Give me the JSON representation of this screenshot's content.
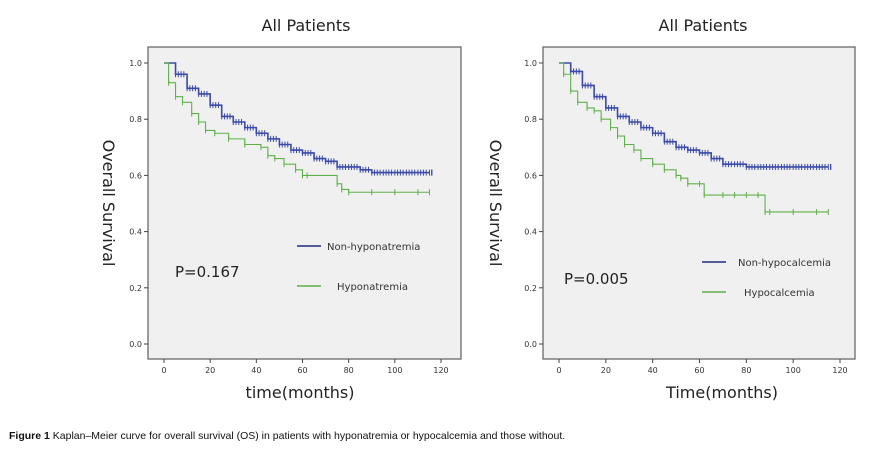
{
  "caption": {
    "label": "Figure 1",
    "text": "Kaplan–Meier curve for overall survival (OS) in patients with hyponatremia or hypocalcemia and those without."
  },
  "chart_data": [
    {
      "type": "line",
      "subtype": "kaplan-meier",
      "title": "All Patients",
      "xlabel": "time(months)",
      "ylabel": "Overall Survival",
      "xlim": [
        0,
        120
      ],
      "ylim": [
        0,
        1.0
      ],
      "xticks": [
        "0",
        "20",
        "40",
        "60",
        "80",
        "100",
        "120"
      ],
      "yticks": [
        "0.0",
        "0.2",
        "0.4",
        "0.6",
        "0.8",
        "1.0"
      ],
      "grid": false,
      "legend_position": "center-right",
      "annotation": "P=0.167",
      "series": [
        {
          "name": "Non-hyponatremia",
          "color": "#3a4aa8",
          "x": [
            0,
            5,
            10,
            15,
            20,
            25,
            30,
            35,
            40,
            45,
            50,
            55,
            60,
            65,
            70,
            75,
            80,
            85,
            90,
            95,
            100,
            105,
            110,
            115
          ],
          "y": [
            1.0,
            0.96,
            0.91,
            0.89,
            0.85,
            0.81,
            0.79,
            0.77,
            0.75,
            0.73,
            0.71,
            0.69,
            0.68,
            0.66,
            0.65,
            0.63,
            0.63,
            0.62,
            0.61,
            0.61,
            0.61,
            0.61,
            0.61,
            0.61
          ]
        },
        {
          "name": "Hyponatremia",
          "color": "#5fb04a",
          "x": [
            0,
            2,
            5,
            8,
            12,
            15,
            18,
            22,
            28,
            35,
            42,
            45,
            48,
            52,
            57,
            60,
            62,
            75,
            77,
            80,
            90,
            100,
            110,
            115
          ],
          "y": [
            1.0,
            0.93,
            0.88,
            0.86,
            0.82,
            0.79,
            0.76,
            0.75,
            0.73,
            0.71,
            0.7,
            0.67,
            0.66,
            0.64,
            0.62,
            0.6,
            0.6,
            0.57,
            0.55,
            0.54,
            0.54,
            0.54,
            0.54,
            0.54
          ]
        }
      ]
    },
    {
      "type": "line",
      "subtype": "kaplan-meier",
      "title": "All Patients",
      "xlabel": "Time(months)",
      "ylabel": "Overall Survival",
      "xlim": [
        0,
        120
      ],
      "ylim": [
        0,
        1.0
      ],
      "xticks": [
        "0",
        "20",
        "40",
        "60",
        "80",
        "100",
        "120"
      ],
      "yticks": [
        "0.0",
        "0.2",
        "0.4",
        "0.6",
        "0.8",
        "1.0"
      ],
      "grid": false,
      "legend_position": "center-right",
      "annotation": "P=0.005",
      "series": [
        {
          "name": "Non-hypocalcemia",
          "color": "#3a4aa8",
          "x": [
            0,
            5,
            10,
            15,
            20,
            25,
            30,
            35,
            40,
            45,
            50,
            55,
            60,
            65,
            70,
            75,
            80,
            85,
            90,
            95,
            100,
            105,
            110,
            115
          ],
          "y": [
            1.0,
            0.97,
            0.92,
            0.88,
            0.84,
            0.81,
            0.79,
            0.77,
            0.75,
            0.72,
            0.7,
            0.69,
            0.68,
            0.66,
            0.64,
            0.64,
            0.63,
            0.63,
            0.63,
            0.63,
            0.63,
            0.63,
            0.63,
            0.63
          ]
        },
        {
          "name": "Hypocalcemia",
          "color": "#5fb04a",
          "x": [
            0,
            2,
            5,
            8,
            12,
            15,
            18,
            22,
            25,
            28,
            32,
            35,
            40,
            45,
            50,
            52,
            55,
            60,
            62,
            70,
            75,
            80,
            85,
            88,
            90,
            100,
            110,
            115
          ],
          "y": [
            1.0,
            0.96,
            0.9,
            0.86,
            0.84,
            0.83,
            0.8,
            0.77,
            0.74,
            0.71,
            0.69,
            0.66,
            0.64,
            0.62,
            0.6,
            0.59,
            0.57,
            0.57,
            0.53,
            0.53,
            0.53,
            0.53,
            0.53,
            0.47,
            0.47,
            0.47,
            0.47,
            0.47
          ]
        }
      ]
    }
  ]
}
